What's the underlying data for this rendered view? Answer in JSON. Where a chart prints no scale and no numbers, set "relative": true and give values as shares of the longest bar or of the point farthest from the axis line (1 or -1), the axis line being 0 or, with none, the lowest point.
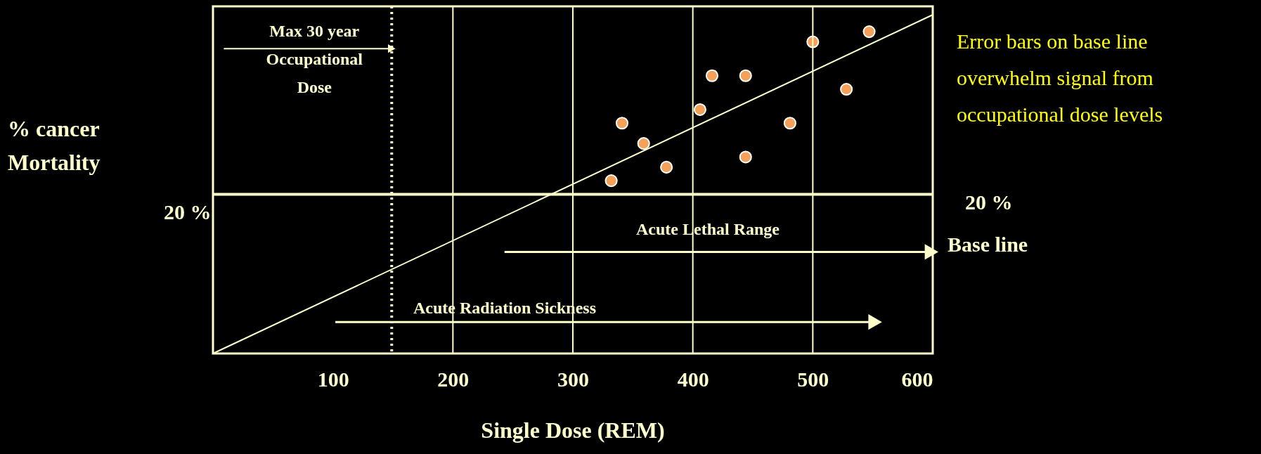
{
  "chart_data": {
    "type": "scatter",
    "relative": true,
    "xlabel": "Single Dose (REM)",
    "xlim": [
      0,
      600
    ],
    "xticks": [
      100,
      200,
      300,
      400,
      500,
      600
    ],
    "tick_labels": "x",
    "series": [
      {
        "color": "#f5a15a",
        "x": [
          332,
          341,
          359,
          378,
          406,
          416,
          444,
          444,
          481,
          500,
          528,
          547
        ],
        "values": [
          0.51,
          0.68,
          0.62,
          0.55,
          0.72,
          0.82,
          0.82,
          0.58,
          0.68,
          0.92,
          0.78,
          0.95
        ]
      },
      {
        "type": "line",
        "color": "#ffffcc",
        "x": [
          0,
          600
        ],
        "values": [
          0,
          1
        ]
      },
      {
        "type": "line",
        "color": "#ffffcc",
        "x": [
          243,
          599
        ],
        "values": [
          0.3,
          0.3
        ]
      },
      {
        "type": "line",
        "color": "#ffffcc",
        "x": [
          102,
          552
        ],
        "values": [
          0.093,
          0.093
        ]
      },
      {
        "type": "line",
        "color": "#ffffcc",
        "x": [
          9,
          149
        ],
        "values": [
          0.9,
          0.9
        ]
      }
    ],
    "ref_lines": [
      {
        "axis": "y",
        "value": 0.47,
        "color": "#ffffcc",
        "line_style": "solid"
      },
      {
        "axis": "x",
        "value": 149,
        "color": "#ffffcc",
        "line_style": "dotted"
      },
      {
        "axis": "x",
        "value": 200,
        "color": "#ffffcc",
        "line_style": "solid"
      },
      {
        "axis": "x",
        "value": 300,
        "color": "#ffffcc",
        "line_style": "solid"
      },
      {
        "axis": "x",
        "value": 400,
        "color": "#ffffcc",
        "line_style": "solid"
      },
      {
        "axis": "x",
        "value": 500,
        "color": "#ffffcc",
        "line_style": "solid"
      }
    ],
    "annotations": [
      {
        "text": "Max 30 year Occupational Dose",
        "x": 149,
        "y": 0.9
      },
      "Acute Lethal Range",
      "Acute Radiation Sickness",
      "% cancer Mortality",
      "20 %",
      "20 %",
      "Base line",
      "Error bars on base line overwhelm signal from occupational dose levels"
    ]
  }
}
